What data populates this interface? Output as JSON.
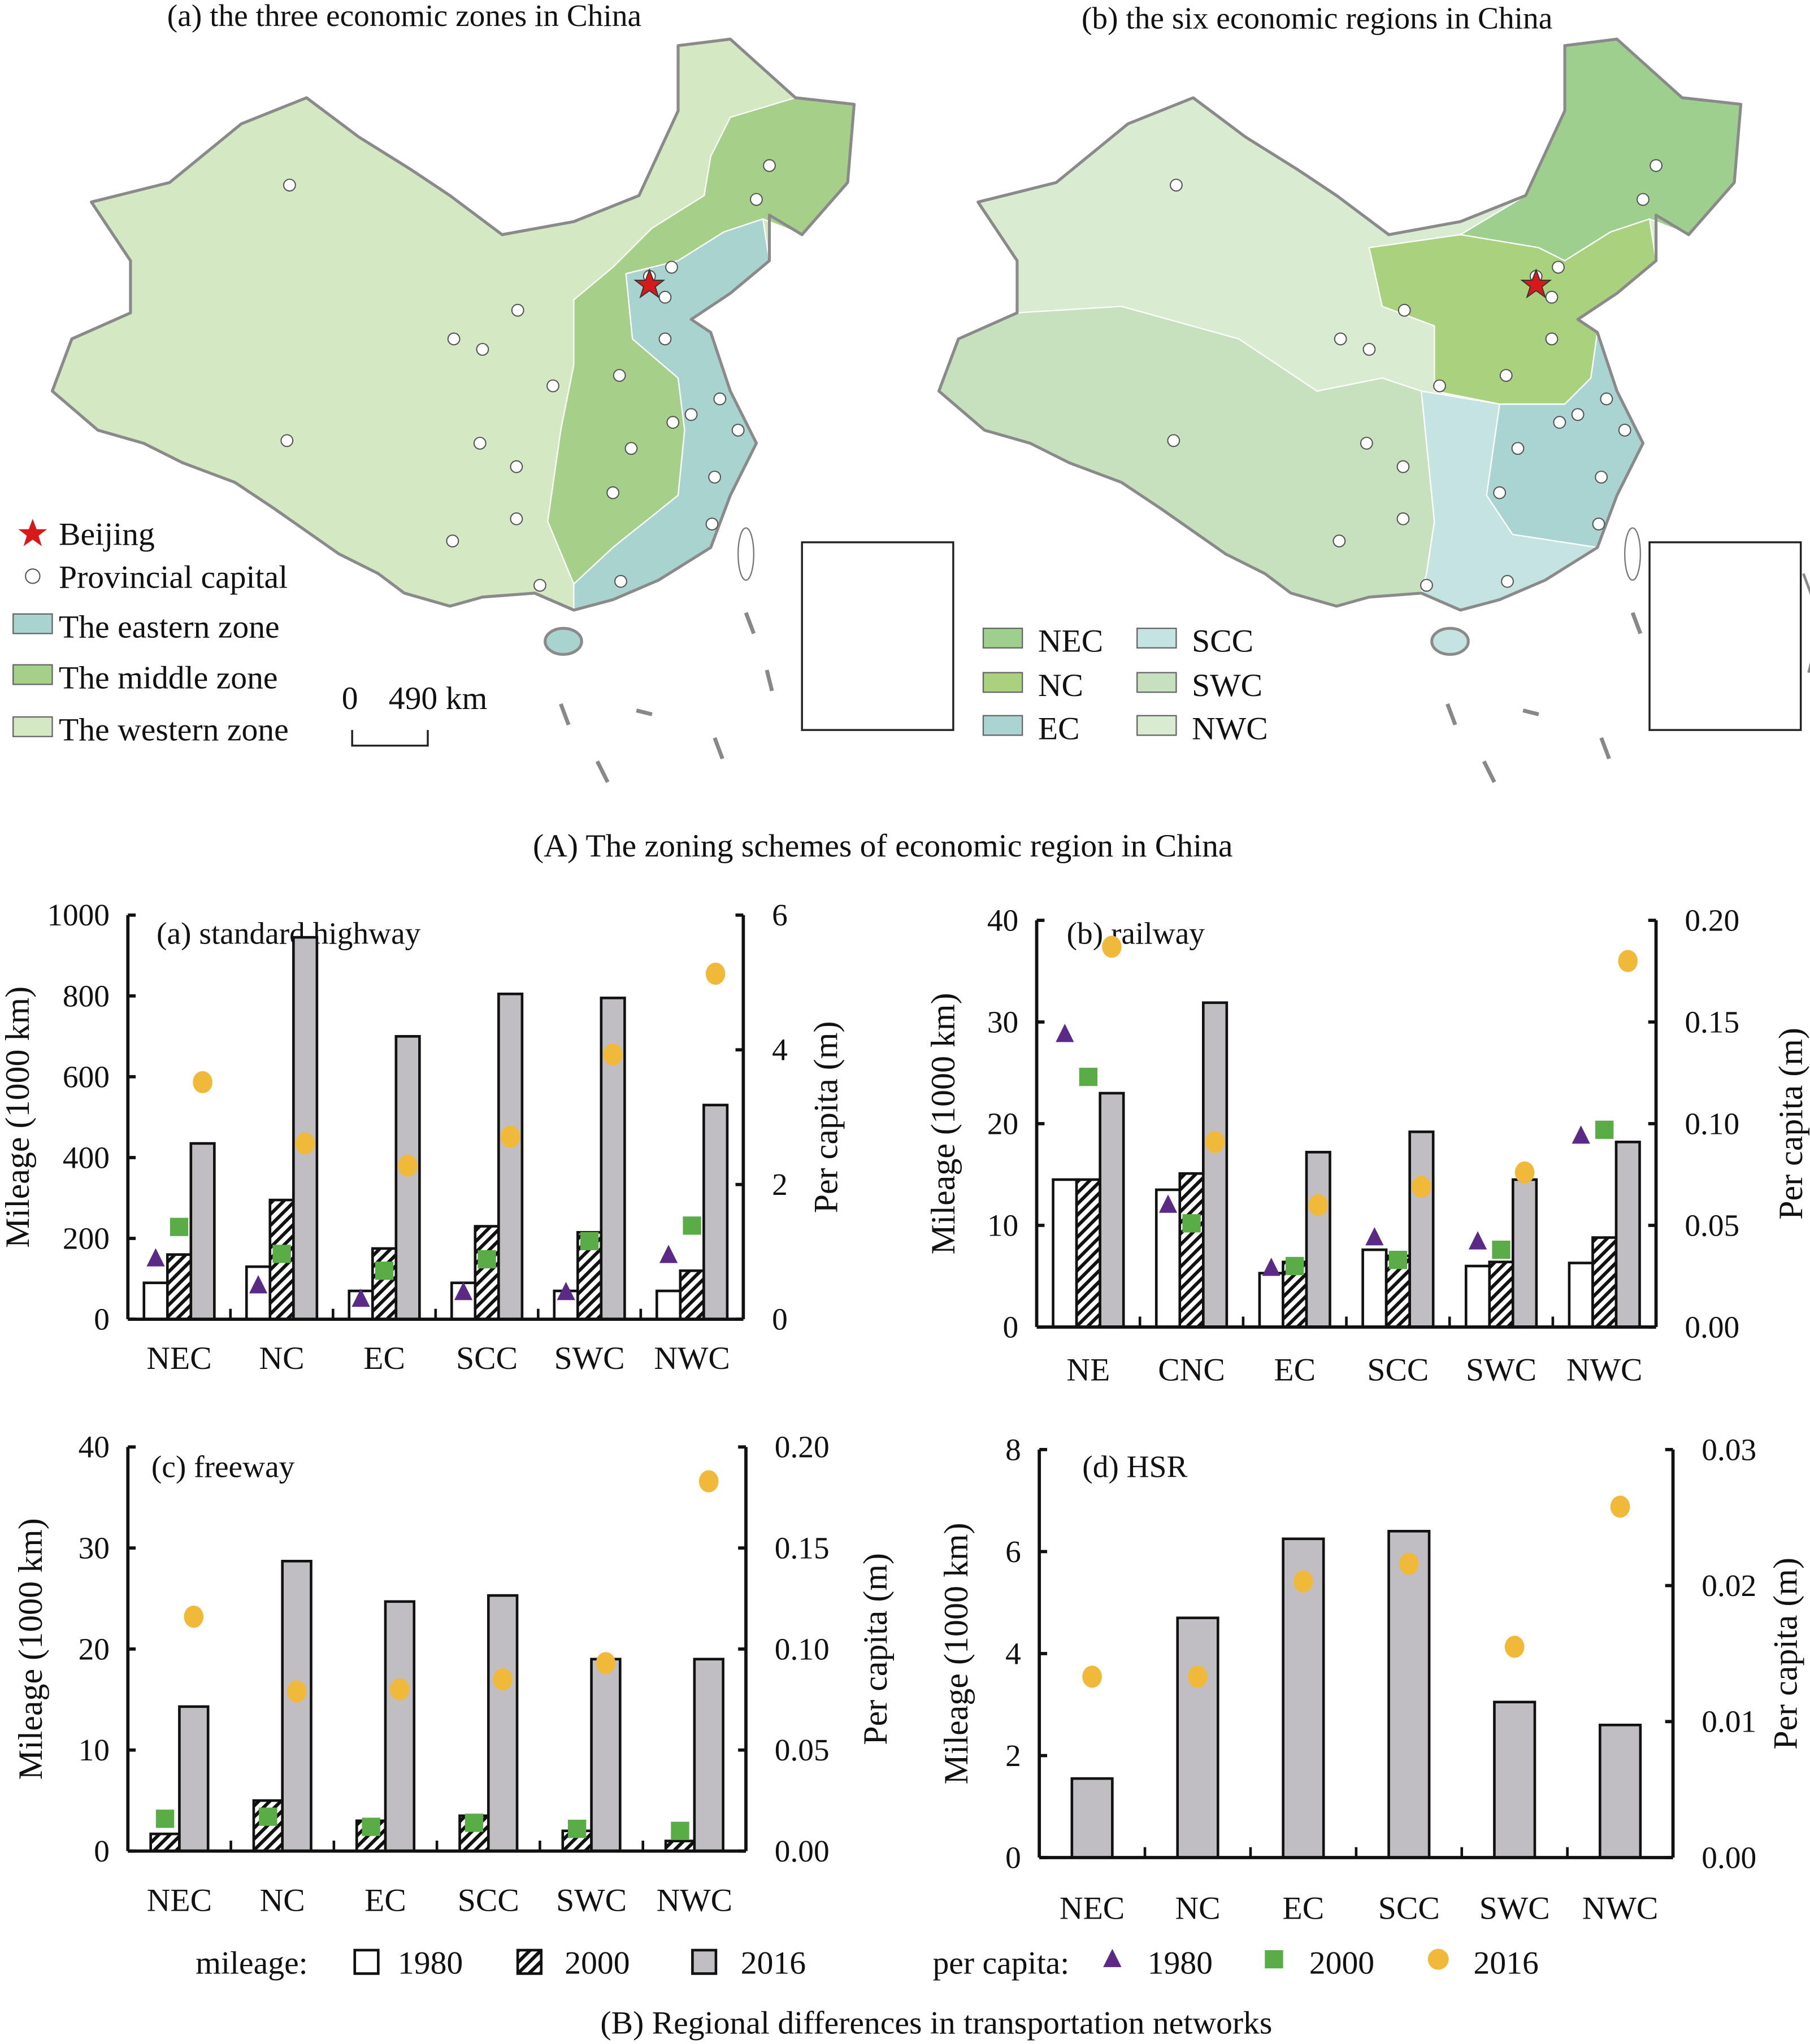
{
  "figure_A": {
    "caption": "(A) The zoning schemes of economic region in China",
    "map_a": {
      "title": "(a) the three economic zones in China",
      "legend": {
        "beijing": "Beijing",
        "capital": "Provincial capital",
        "eastern": "The eastern zone",
        "middle": "The middle zone",
        "western": "The western zone"
      },
      "scale": {
        "zero": "0",
        "distance": "490 km"
      },
      "colors": {
        "eastern": "#a8d3cf",
        "middle": "#a6cf8a",
        "western": "#d4e8c4",
        "beijing": "#d7191c"
      }
    },
    "map_b": {
      "title": "(b) the six economic regions in China",
      "legend": [
        "NEC",
        "NC",
        "EC",
        "SCC",
        "SWC",
        "NWC"
      ],
      "colors": {
        "NEC": "#9fcf8f",
        "NC": "#a9d17e",
        "EC": "#a9d4d2",
        "SCC": "#c5e4e1",
        "SWC": "#c7e1bf",
        "NWC": "#d9ebd0"
      }
    }
  },
  "figure_B": {
    "caption": "(B) Regional differences in transportation networks",
    "legend": {
      "mileage_label": "mileage:",
      "per_capita_label": "per capita:",
      "years": [
        "1980",
        "2000",
        "2016"
      ]
    }
  },
  "colors": {
    "bar_1980": "#ffffff",
    "bar_2016": "#c0bec2",
    "tri_1980": "#5b2a86",
    "sq_2000": "#5aac46",
    "circ_2016": "#f0b93a"
  },
  "chart_data": [
    {
      "type": "bar",
      "title": "(a) standard highway",
      "ylabel": "Mileage (1000 km)",
      "y2label": "Per capita (m)",
      "ylim": [
        0,
        1000
      ],
      "y2lim": [
        0,
        6
      ],
      "yticks": [
        "0",
        "200",
        "400",
        "600",
        "800",
        "1000"
      ],
      "y2ticks": [
        "0",
        "2",
        "4",
        "6"
      ],
      "categories": [
        "NEC",
        "NC",
        "EC",
        "SCC",
        "SWC",
        "NWC"
      ],
      "series": [
        {
          "name": "1980",
          "axis": "mileage",
          "values": [
            90,
            130,
            70,
            90,
            70,
            70
          ]
        },
        {
          "name": "2000",
          "axis": "mileage",
          "values": [
            160,
            295,
            175,
            230,
            215,
            120
          ]
        },
        {
          "name": "2016",
          "axis": "mileage",
          "values": [
            435,
            945,
            700,
            805,
            795,
            530
          ]
        }
      ],
      "per_capita": [
        {
          "name": "1980",
          "values": [
            0.9,
            0.5,
            0.3,
            0.4,
            0.4,
            0.95
          ]
        },
        {
          "name": "2000",
          "values": [
            1.37,
            0.97,
            0.72,
            0.89,
            1.16,
            1.39
          ]
        },
        {
          "name": "2016",
          "values": [
            3.52,
            2.61,
            2.28,
            2.71,
            3.93,
            5.13
          ]
        }
      ]
    },
    {
      "type": "bar",
      "title": "(b) railway",
      "ylabel": "Mileage (1000 km)",
      "y2label": "Per capita (m)",
      "ylim": [
        0,
        40
      ],
      "y2lim": [
        0,
        0.2
      ],
      "yticks": [
        "0",
        "10",
        "20",
        "30",
        "40"
      ],
      "y2ticks": [
        "0.00",
        "0.05",
        "0.10",
        "0.15",
        "0.20"
      ],
      "categories": [
        "NE",
        "CNC",
        "EC",
        "SCC",
        "SWC",
        "NWC"
      ],
      "series": [
        {
          "name": "1980",
          "axis": "mileage",
          "values": [
            14.5,
            13.5,
            5.3,
            7.6,
            6.0,
            6.3
          ]
        },
        {
          "name": "2000",
          "axis": "mileage",
          "values": [
            14.5,
            15.1,
            6.4,
            7.0,
            6.4,
            8.8
          ]
        },
        {
          "name": "2016",
          "axis": "mileage",
          "values": [
            23.0,
            31.9,
            17.2,
            19.2,
            14.5,
            18.2
          ]
        }
      ],
      "per_capita": [
        {
          "name": "1980",
          "values": [
            0.144,
            0.06,
            0.029,
            0.044,
            0.042,
            0.094
          ]
        },
        {
          "name": "2000",
          "values": [
            0.123,
            0.051,
            0.03,
            0.033,
            0.038,
            0.097
          ]
        },
        {
          "name": "2016",
          "values": [
            0.187,
            0.091,
            0.06,
            0.069,
            0.076,
            0.18
          ]
        }
      ]
    },
    {
      "type": "bar",
      "title": "(c) freeway",
      "ylabel": "Mileage (1000 km)",
      "y2label": "Per capita (m)",
      "ylim": [
        0,
        40
      ],
      "y2lim": [
        0,
        0.2
      ],
      "yticks": [
        "0",
        "10",
        "20",
        "30",
        "40"
      ],
      "y2ticks": [
        "0.00",
        "0.05",
        "0.10",
        "0.15",
        "0.20"
      ],
      "categories": [
        "NEC",
        "NC",
        "EC",
        "SCC",
        "SWC",
        "NWC"
      ],
      "series": [
        {
          "name": "2000",
          "axis": "mileage",
          "values": [
            1.7,
            5.0,
            3.0,
            3.5,
            2.0,
            1.0
          ]
        },
        {
          "name": "2016",
          "axis": "mileage",
          "values": [
            14.3,
            28.7,
            24.7,
            25.3,
            19.0,
            19.0
          ]
        }
      ],
      "per_capita": [
        {
          "name": "2000",
          "values": [
            0.016,
            0.017,
            0.012,
            0.014,
            0.011,
            0.01
          ]
        },
        {
          "name": "2016",
          "values": [
            0.116,
            0.079,
            0.08,
            0.085,
            0.093,
            0.183
          ]
        }
      ]
    },
    {
      "type": "bar",
      "title": "(d) HSR",
      "ylabel": "Mileage (1000 km)",
      "y2label": "Per capita (m)",
      "ylim": [
        0,
        8
      ],
      "y2lim": [
        0,
        0.03
      ],
      "yticks": [
        "0",
        "2",
        "4",
        "6",
        "8"
      ],
      "y2ticks": [
        "0.00",
        "0.01",
        "0.02",
        "0.03"
      ],
      "categories": [
        "NEC",
        "NC",
        "EC",
        "SCC",
        "SWC",
        "NWC"
      ],
      "series": [
        {
          "name": "2016",
          "axis": "mileage",
          "values": [
            1.55,
            4.7,
            6.25,
            6.4,
            3.05,
            2.6
          ]
        }
      ],
      "per_capita": [
        {
          "name": "2016",
          "values": [
            0.0133,
            0.0133,
            0.0203,
            0.0216,
            0.0155,
            0.0258
          ]
        }
      ]
    }
  ]
}
